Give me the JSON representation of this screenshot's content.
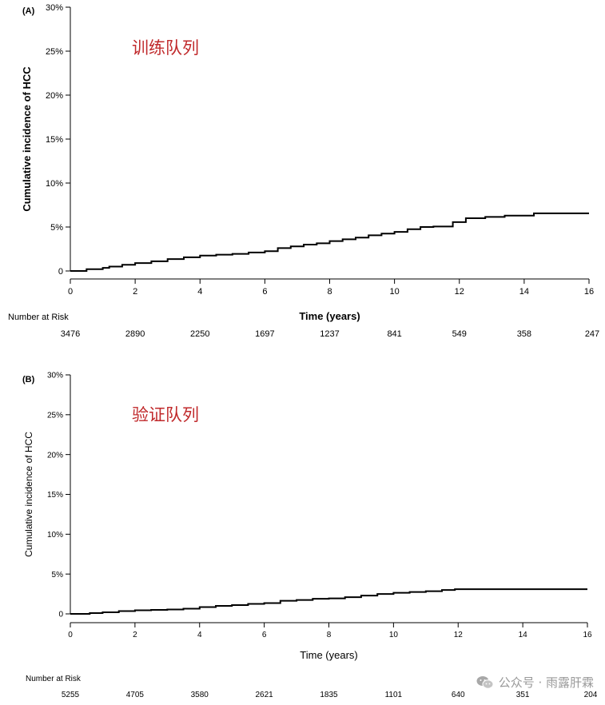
{
  "chart_data": [
    {
      "type": "line",
      "panel_label": "(A)",
      "annotation": "训练队列",
      "annotation_color": "#c0292b",
      "xlabel": "Time (years)",
      "ylabel": "Cumulative incidence of HCC",
      "xlim": [
        0,
        16
      ],
      "ylim": [
        0,
        30
      ],
      "x_ticks": [
        0,
        2,
        4,
        6,
        8,
        10,
        12,
        14,
        16
      ],
      "y_ticks": [
        0,
        5,
        10,
        15,
        20,
        25,
        30
      ],
      "y_tick_labels": [
        "0",
        "5%",
        "10%",
        "15%",
        "20%",
        "25%",
        "30%"
      ],
      "series": [
        {
          "style": "step",
          "color": "#000000",
          "x": [
            0,
            0.5,
            1.0,
            1.2,
            1.6,
            2.0,
            2.5,
            3.0,
            3.5,
            4.0,
            4.5,
            5.0,
            5.5,
            6.0,
            6.4,
            6.8,
            7.2,
            7.6,
            8.0,
            8.4,
            8.8,
            9.2,
            9.6,
            10.0,
            10.4,
            10.8,
            11.2,
            11.8,
            12.2,
            12.8,
            13.4,
            14.0,
            14.3,
            16.0
          ],
          "y": [
            0,
            0.2,
            0.35,
            0.5,
            0.7,
            0.9,
            1.1,
            1.35,
            1.55,
            1.75,
            1.85,
            1.95,
            2.1,
            2.25,
            2.6,
            2.8,
            3.0,
            3.15,
            3.4,
            3.6,
            3.8,
            4.05,
            4.25,
            4.45,
            4.75,
            5.0,
            5.05,
            5.55,
            6.0,
            6.15,
            6.3,
            6.3,
            6.55,
            6.55
          ]
        }
      ],
      "risk_table": {
        "title": "Number at Risk",
        "times": [
          0,
          2,
          4,
          6,
          8,
          10,
          12,
          14,
          16
        ],
        "values": [
          "3476",
          "2890",
          "2250",
          "1697",
          "1237",
          "841",
          "549",
          "358",
          "247"
        ]
      }
    },
    {
      "type": "line",
      "panel_label": "(B)",
      "annotation": "验证队列",
      "annotation_color": "#c0292b",
      "xlabel": "Time (years)",
      "ylabel": "Cumulative incidence of HCC",
      "xlim": [
        0,
        16
      ],
      "ylim": [
        0,
        30
      ],
      "x_ticks": [
        0,
        2,
        4,
        6,
        8,
        10,
        12,
        14,
        16
      ],
      "y_ticks": [
        0,
        5,
        10,
        15,
        20,
        25,
        30
      ],
      "y_tick_labels": [
        "0",
        "5%",
        "10%",
        "15%",
        "20%",
        "25%",
        "30%"
      ],
      "series": [
        {
          "style": "step",
          "color": "#000000",
          "x": [
            0,
            0.6,
            1.0,
            1.5,
            2.0,
            2.5,
            3.0,
            3.5,
            4.0,
            4.5,
            5.0,
            5.5,
            6.0,
            6.5,
            7.0,
            7.5,
            8.0,
            8.5,
            9.0,
            9.5,
            10.0,
            10.5,
            11.0,
            11.5,
            11.9,
            13.0,
            16.0
          ],
          "y": [
            0,
            0.1,
            0.2,
            0.35,
            0.45,
            0.5,
            0.55,
            0.65,
            0.85,
            1.0,
            1.1,
            1.25,
            1.35,
            1.65,
            1.75,
            1.9,
            1.95,
            2.1,
            2.3,
            2.5,
            2.65,
            2.75,
            2.85,
            3.0,
            3.1,
            3.1,
            3.1
          ]
        }
      ],
      "risk_table": {
        "title": "Number at Risk",
        "times": [
          0,
          2,
          4,
          6,
          8,
          10,
          12,
          14,
          16
        ],
        "values": [
          "5255",
          "4705",
          "3580",
          "2621",
          "1835",
          "1101",
          "640",
          "351",
          "204"
        ]
      }
    }
  ],
  "watermark": {
    "text": "公众号 · 雨露肝霖",
    "icon": "wechat-icon"
  }
}
